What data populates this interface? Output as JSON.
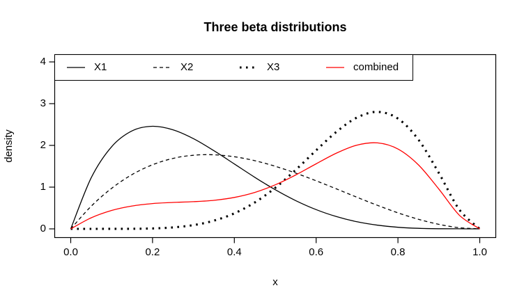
{
  "chart_data": {
    "type": "line",
    "title": "Three beta distributions",
    "xlabel": "x",
    "ylabel": "density",
    "xlim": [
      0,
      1
    ],
    "ylim": [
      0,
      4
    ],
    "grid": false,
    "legend_position": "top-left",
    "background_color": "#ffffff",
    "axis_color": "#000000",
    "x_ticks": {
      "values": [
        0,
        0.2,
        0.4,
        0.6,
        0.8,
        1.0
      ],
      "labels": [
        "0.0",
        "0.2",
        "0.4",
        "0.6",
        "0.8",
        "1.0"
      ]
    },
    "y_ticks": {
      "values": [
        0,
        1,
        2,
        3,
        4
      ],
      "labels": [
        "0",
        "1",
        "2",
        "3",
        "4"
      ]
    },
    "x": [
      0,
      0.05,
      0.1,
      0.15,
      0.2,
      0.25,
      0.3,
      0.35,
      0.4,
      0.45,
      0.5,
      0.55,
      0.6,
      0.65,
      0.7,
      0.75,
      0.8,
      0.85,
      0.9,
      0.95,
      1
    ],
    "series": [
      {
        "name": "X1",
        "color": "#000000",
        "style": "solid",
        "width": 1.3,
        "values": [
          0,
          1.222,
          1.968,
          2.349,
          2.458,
          2.373,
          2.161,
          1.874,
          1.555,
          1.235,
          0.938,
          0.677,
          0.461,
          0.293,
          0.17,
          0.088,
          0.038,
          0.013,
          0.003,
          0.001,
          0
        ]
      },
      {
        "name": "X2",
        "color": "#000000",
        "style": "dashed",
        "width": 1.3,
        "values": [
          0,
          0.542,
          0.972,
          1.301,
          1.536,
          1.688,
          1.764,
          1.775,
          1.728,
          1.634,
          1.5,
          1.337,
          1.152,
          0.956,
          0.756,
          0.563,
          0.384,
          0.23,
          0.108,
          0.029,
          0
        ]
      },
      {
        "name": "X3",
        "color": "#000000",
        "style": "dotted",
        "width": 3.1,
        "values": [
          0,
          0,
          0.001,
          0.002,
          0.01,
          0.035,
          0.09,
          0.196,
          0.372,
          0.633,
          0.984,
          1.413,
          1.881,
          2.328,
          2.668,
          2.803,
          2.642,
          2.138,
          1.339,
          0.463,
          0
        ]
      },
      {
        "name": "combined",
        "color": "#ff0000",
        "style": "solid",
        "width": 1.3,
        "values": [
          0,
          0.265,
          0.441,
          0.549,
          0.606,
          0.633,
          0.652,
          0.684,
          0.753,
          0.873,
          1.055,
          1.291,
          1.559,
          1.817,
          2.007,
          2.06,
          1.913,
          1.533,
          0.954,
          0.329,
          0
        ]
      }
    ]
  }
}
